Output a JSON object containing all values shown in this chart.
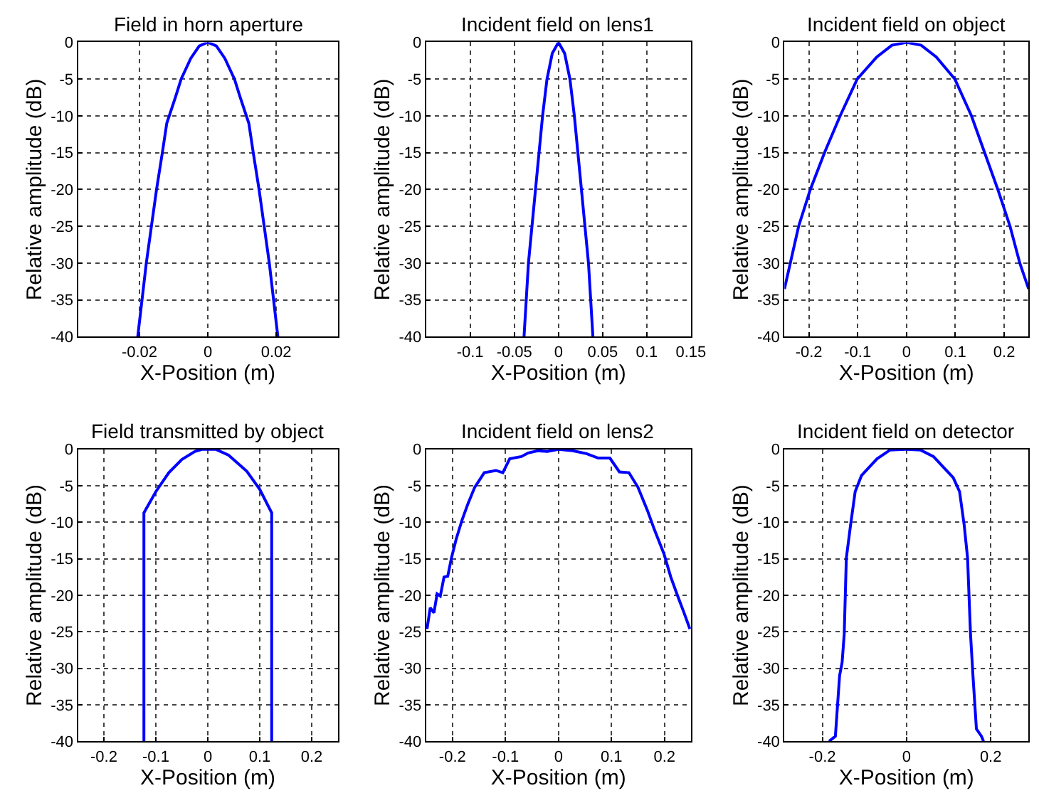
{
  "chart_data": [
    {
      "type": "line",
      "title": "Field in horn aperture",
      "xlabel": "X-Position (m)",
      "ylabel": "Relative amplitude (dB)",
      "grid": true,
      "xlim": [
        -0.038,
        0.038
      ],
      "xticks": [
        -0.02,
        0,
        0.02
      ],
      "ylim": [
        -40,
        0
      ],
      "yticks": [
        -40,
        -35,
        -30,
        -25,
        -20,
        -15,
        -10,
        -5,
        0
      ],
      "x": [
        -0.0205,
        -0.018,
        -0.0165,
        -0.015,
        -0.0133,
        -0.012,
        -0.0095,
        -0.0078,
        -0.005,
        -0.0025,
        0,
        0.0025,
        0.005,
        0.0078,
        0.0095,
        0.012,
        0.0133,
        0.015,
        0.0165,
        0.018,
        0.0205
      ],
      "series": [
        {
          "color": "#0000ff",
          "values": [
            -40,
            -30,
            -25,
            -20,
            -15,
            -11,
            -7.5,
            -5,
            -2.2,
            -0.5,
            0,
            -0.5,
            -2.2,
            -5,
            -7.5,
            -11,
            -15,
            -20,
            -25,
            -30,
            -40
          ]
        }
      ]
    },
    {
      "type": "line",
      "title": "Incident field on lens1",
      "xlabel": "X-Position (m)",
      "ylabel": "Relative amplitude (dB)",
      "grid": true,
      "xlim": [
        -0.15,
        0.15
      ],
      "xticks": [
        -0.1,
        -0.05,
        0,
        0.05,
        0.1,
        0.15
      ],
      "ylim": [
        -40,
        0
      ],
      "yticks": [
        -40,
        -35,
        -30,
        -25,
        -20,
        -15,
        -10,
        -5,
        0
      ],
      "x": [
        -0.039,
        -0.034,
        -0.026,
        -0.018,
        -0.013,
        -0.007,
        0,
        0.007,
        0.013,
        0.018,
        0.026,
        0.034,
        0.039
      ],
      "series": [
        {
          "color": "#0000ff",
          "values": [
            -40,
            -30,
            -20,
            -10,
            -5,
            -1.5,
            0,
            -1.5,
            -5,
            -10,
            -20,
            -30,
            -40
          ]
        }
      ]
    },
    {
      "type": "line",
      "title": "Incident field on object",
      "xlabel": "X-Position (m)",
      "ylabel": "Relative amplitude (dB)",
      "grid": true,
      "xlim": [
        -0.25,
        0.25
      ],
      "xticks": [
        -0.2,
        -0.1,
        0,
        0.1,
        0.2
      ],
      "ylim": [
        -40,
        0
      ],
      "yticks": [
        -40,
        -35,
        -30,
        -25,
        -20,
        -15,
        -10,
        -5,
        0
      ],
      "x": [
        -0.25,
        -0.221,
        -0.197,
        -0.168,
        -0.136,
        -0.101,
        -0.061,
        -0.03,
        0,
        0.03,
        0.061,
        0.099,
        0.133,
        0.16,
        0.187,
        0.212,
        0.232,
        0.25
      ],
      "series": [
        {
          "color": "#0000ff",
          "values": [
            -33.5,
            -25,
            -20,
            -15,
            -10,
            -5,
            -2,
            -0.4,
            0,
            -0.4,
            -2,
            -5,
            -10,
            -15,
            -20,
            -25,
            -30,
            -33.5
          ]
        }
      ]
    },
    {
      "type": "line",
      "title": "Field transmitted by object",
      "xlabel": "X-Position (m)",
      "ylabel": "Relative amplitude (dB)",
      "grid": true,
      "xlim": [
        -0.25,
        0.25
      ],
      "xticks": [
        -0.2,
        -0.1,
        0,
        0.1,
        0.2
      ],
      "ylim": [
        -40,
        0
      ],
      "yticks": [
        -40,
        -35,
        -30,
        -25,
        -20,
        -15,
        -10,
        -5,
        0
      ],
      "x": [
        -0.123,
        -0.123,
        -0.1,
        -0.075,
        -0.05,
        -0.025,
        -0.01,
        0.015,
        0.04,
        0.075,
        0.1,
        0.123,
        0.123
      ],
      "series": [
        {
          "color": "#0000ff",
          "values": [
            -40,
            -8.7,
            -5.8,
            -3.2,
            -1.4,
            -0.3,
            0,
            0,
            -0.8,
            -3,
            -5.5,
            -8.7,
            -40
          ]
        }
      ]
    },
    {
      "type": "line",
      "title": "Incident field on lens2",
      "xlabel": "X-Position (m)",
      "ylabel": "Relative amplitude (dB)",
      "grid": true,
      "xlim": [
        -0.25,
        0.25
      ],
      "xticks": [
        -0.2,
        -0.1,
        0,
        0.1,
        0.2
      ],
      "ylim": [
        -40,
        0
      ],
      "yticks": [
        -40,
        -35,
        -30,
        -25,
        -20,
        -15,
        -10,
        -5,
        0
      ],
      "x": [
        -0.248,
        -0.242,
        -0.235,
        -0.229,
        -0.223,
        -0.216,
        -0.209,
        -0.202,
        -0.193,
        -0.182,
        -0.171,
        -0.158,
        -0.14,
        -0.118,
        -0.105,
        -0.092,
        -0.07,
        -0.057,
        -0.039,
        -0.021,
        0,
        0.027,
        0.053,
        0.075,
        0.097,
        0.115,
        0.133,
        0.15,
        0.168,
        0.181,
        0.199,
        0.212,
        0.225,
        0.237,
        0.248
      ],
      "series": [
        {
          "color": "#0000ff",
          "values": [
            -24.6,
            -21.7,
            -22.4,
            -19.8,
            -20.1,
            -17.5,
            -17.4,
            -14.9,
            -12.3,
            -9.7,
            -7.5,
            -5.2,
            -3.2,
            -2.9,
            -3.2,
            -1.3,
            -1,
            -0.5,
            -0.2,
            -0.3,
            0,
            -0.2,
            -0.6,
            -1.2,
            -1.2,
            -3.1,
            -3.2,
            -5.2,
            -8.4,
            -11,
            -14.3,
            -17.5,
            -20.1,
            -22.4,
            -24.6
          ]
        }
      ]
    },
    {
      "type": "line",
      "title": "Incident field on detector",
      "xlabel": "X-Position (m)",
      "ylabel": "Relative amplitude (dB)",
      "grid": true,
      "xlim": [
        -0.29,
        0.29
      ],
      "xticks": [
        -0.2,
        0,
        0.2
      ],
      "ylim": [
        -40,
        0
      ],
      "yticks": [
        -40,
        -35,
        -30,
        -25,
        -20,
        -15,
        -10,
        -5,
        0
      ],
      "x": [
        -0.184,
        -0.169,
        -0.159,
        -0.153,
        -0.148,
        -0.143,
        -0.133,
        -0.122,
        -0.107,
        -0.091,
        -0.07,
        -0.039,
        0,
        0.033,
        0.064,
        0.09,
        0.111,
        0.126,
        0.137,
        0.145,
        0.152,
        0.158,
        0.166,
        0.178,
        0.183
      ],
      "series": [
        {
          "color": "#0000ff",
          "values": [
            -40,
            -39.3,
            -31,
            -29.2,
            -25.3,
            -14.9,
            -10.4,
            -5.8,
            -3.6,
            -2.6,
            -1.3,
            -0.1,
            0,
            -0.1,
            -1,
            -2.6,
            -3.9,
            -5.8,
            -10.4,
            -14.9,
            -25.3,
            -31.2,
            -38.3,
            -39.3,
            -40
          ]
        }
      ]
    }
  ]
}
